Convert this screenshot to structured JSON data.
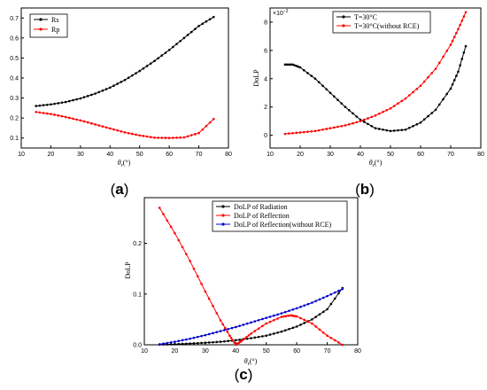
{
  "panels": {
    "a": {
      "label_open": "(",
      "label_letter": "a",
      "label_close": ")"
    },
    "b": {
      "label_open": "(",
      "label_letter": "b",
      "label_close": ")"
    },
    "c": {
      "label_open": "(",
      "label_letter": "c",
      "label_close": ")"
    }
  },
  "chart_data": [
    {
      "id": "a",
      "type": "line",
      "xlabel": "θr(°)",
      "ylabel": "",
      "xlim": [
        10,
        80
      ],
      "ylim": [
        0.05,
        0.75
      ],
      "xticks": [
        10,
        20,
        30,
        40,
        50,
        60,
        70,
        80
      ],
      "yticks": [
        0.1,
        0.2,
        0.3,
        0.4,
        0.5,
        0.6,
        0.7
      ],
      "ytick_labels": [
        "0.1",
        "0.2",
        "0.3",
        "0.4",
        "0.5",
        "0.6",
        "0.7"
      ],
      "legend_position": "top-left",
      "series": [
        {
          "name": "Rs",
          "color": "#000000",
          "x": [
            15,
            20,
            25,
            30,
            35,
            40,
            45,
            50,
            55,
            60,
            65,
            70,
            75
          ],
          "y": [
            0.26,
            0.268,
            0.28,
            0.298,
            0.322,
            0.352,
            0.39,
            0.435,
            0.485,
            0.54,
            0.6,
            0.66,
            0.705
          ]
        },
        {
          "name": "Rp",
          "color": "#ff0000",
          "x": [
            15,
            20,
            25,
            30,
            35,
            40,
            45,
            50,
            55,
            60,
            65,
            70,
            75
          ],
          "y": [
            0.23,
            0.22,
            0.205,
            0.188,
            0.168,
            0.148,
            0.128,
            0.113,
            0.102,
            0.1,
            0.103,
            0.125,
            0.195
          ]
        }
      ]
    },
    {
      "id": "b",
      "type": "line",
      "xlabel": "θr(°)",
      "ylabel": "DoLP",
      "scale_label": "×10⁻²",
      "xlim": [
        10,
        80
      ],
      "ylim": [
        -0.009,
        0.09
      ],
      "xticks": [
        10,
        20,
        30,
        40,
        50,
        60,
        70,
        80
      ],
      "yticks": [
        0,
        0.02,
        0.04,
        0.06,
        0.08
      ],
      "ytick_labels": [
        "0",
        "2",
        "4",
        "6",
        "8"
      ],
      "legend_position": "top-center",
      "series": [
        {
          "name": "T=30°C",
          "color": "#000000",
          "x": [
            15,
            17.5,
            20,
            25,
            30,
            35,
            40,
            45,
            50,
            55,
            60,
            65,
            70,
            72.5,
            75
          ],
          "y": [
            0.05,
            0.05,
            0.048,
            0.04,
            0.03,
            0.02,
            0.011,
            0.005,
            0.003,
            0.004,
            0.009,
            0.018,
            0.033,
            0.045,
            0.063
          ]
        },
        {
          "name": "T=30°C(without RCE)",
          "color": "#ff0000",
          "x": [
            15,
            20,
            25,
            30,
            35,
            40,
            45,
            50,
            55,
            60,
            65,
            70,
            72.5,
            75
          ],
          "y": [
            0.001,
            0.002,
            0.003,
            0.005,
            0.007,
            0.01,
            0.014,
            0.019,
            0.026,
            0.035,
            0.047,
            0.064,
            0.075,
            0.087
          ]
        }
      ]
    },
    {
      "id": "c",
      "type": "line",
      "xlabel": "θr(°)",
      "ylabel": "DoLP",
      "xlim": [
        10,
        80
      ],
      "ylim": [
        0,
        0.29
      ],
      "xticks": [
        10,
        20,
        30,
        40,
        50,
        60,
        70,
        80
      ],
      "yticks": [
        0,
        0.1,
        0.2
      ],
      "ytick_labels": [
        "0.0",
        "0.1",
        "0.2"
      ],
      "legend_position": "top-right",
      "series": [
        {
          "name": "DoLP of  Radiation",
          "color": "#000000",
          "x": [
            15,
            20,
            25,
            30,
            35,
            40,
            45,
            50,
            55,
            60,
            65,
            70,
            75
          ],
          "y": [
            0.0005,
            0.0012,
            0.0025,
            0.004,
            0.006,
            0.009,
            0.013,
            0.018,
            0.026,
            0.036,
            0.05,
            0.07,
            0.112
          ]
        },
        {
          "name": "DoLP of  Reflection",
          "color": "#ff0000",
          "x": [
            15,
            20,
            25,
            30,
            35,
            38,
            40,
            42,
            45,
            50,
            55,
            58,
            60,
            65,
            70,
            75
          ],
          "y": [
            0.27,
            0.22,
            0.165,
            0.105,
            0.048,
            0.018,
            0.0,
            0.008,
            0.022,
            0.042,
            0.055,
            0.058,
            0.056,
            0.042,
            0.018,
            0.0
          ]
        },
        {
          "name": "DoLP of  Reflection(without RCE)",
          "color": "#0000cc",
          "x": [
            15,
            20,
            25,
            30,
            35,
            40,
            45,
            50,
            55,
            60,
            65,
            70,
            75
          ],
          "y": [
            0.001,
            0.006,
            0.012,
            0.019,
            0.027,
            0.035,
            0.044,
            0.053,
            0.062,
            0.072,
            0.083,
            0.096,
            0.11
          ]
        }
      ]
    }
  ]
}
